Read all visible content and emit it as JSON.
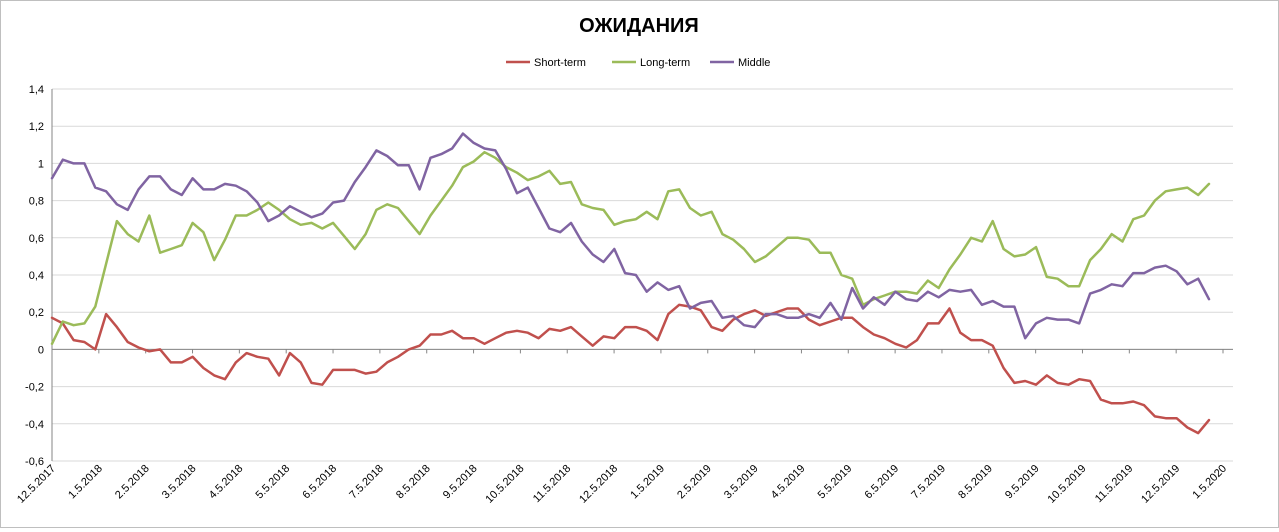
{
  "chart_data": {
    "type": "line",
    "title": "ОЖИДАНИЯ",
    "xlabel": "",
    "ylabel": "",
    "ylim": [
      -0.6,
      1.4
    ],
    "yticks": [
      "-0,6",
      "-0,4",
      "-0,2",
      "0",
      "0,2",
      "0,4",
      "0,6",
      "0,8",
      "1",
      "1,2",
      "1,4"
    ],
    "x_tick_labels": [
      "12.5.2017",
      "1.5.2018",
      "2.5.2018",
      "3.5.2018",
      "4.5.2018",
      "5.5.2018",
      "6.5.2018",
      "7.5.2018",
      "8.5.2018",
      "9.5.2018",
      "10.5.2018",
      "11.5.2018",
      "12.5.2018",
      "1.5.2019",
      "2.5.2019",
      "3.5.2019",
      "4.5.2019",
      "5.5.2019",
      "6.5.2019",
      "7.5.2019",
      "8.5.2019",
      "9.5.2019",
      "10.5.2019",
      "11.5.2019",
      "12.5.2019",
      "1.5.2020"
    ],
    "grid": "horizontal",
    "legend": "top",
    "series": [
      {
        "name": "Short-term",
        "color": "#c0504d",
        "values": [
          0.17,
          0.14,
          0.05,
          0.04,
          0.0,
          0.19,
          0.12,
          0.04,
          0.01,
          -0.01,
          0.0,
          -0.07,
          -0.07,
          -0.04,
          -0.1,
          -0.14,
          -0.16,
          -0.07,
          -0.02,
          -0.04,
          -0.05,
          -0.14,
          -0.02,
          -0.07,
          -0.18,
          -0.19,
          -0.11,
          -0.11,
          -0.11,
          -0.13,
          -0.12,
          -0.07,
          -0.04,
          0.0,
          0.02,
          0.08,
          0.08,
          0.1,
          0.06,
          0.06,
          0.03,
          0.06,
          0.09,
          0.1,
          0.09,
          0.06,
          0.11,
          0.1,
          0.12,
          0.07,
          0.02,
          0.07,
          0.06,
          0.12,
          0.12,
          0.1,
          0.05,
          0.19,
          0.24,
          0.23,
          0.21,
          0.12,
          0.1,
          0.16,
          0.19,
          0.21,
          0.18,
          0.2,
          0.22,
          0.22,
          0.16,
          0.13,
          0.15,
          0.17,
          0.17,
          0.12,
          0.08,
          0.06,
          0.03,
          0.01,
          0.05,
          0.14,
          0.14,
          0.22,
          0.09,
          0.05,
          0.05,
          0.02,
          -0.1,
          -0.18,
          -0.17,
          -0.19,
          -0.14,
          -0.18,
          -0.19,
          -0.16,
          -0.17,
          -0.27,
          -0.29,
          -0.29,
          -0.28,
          -0.3,
          -0.36,
          -0.37,
          -0.37,
          -0.42,
          -0.45,
          -0.38
        ]
      },
      {
        "name": "Long-term",
        "color": "#9bbb59",
        "values": [
          0.03,
          0.15,
          0.13,
          0.14,
          0.23,
          0.46,
          0.69,
          0.62,
          0.58,
          0.72,
          0.52,
          0.54,
          0.56,
          0.68,
          0.63,
          0.48,
          0.59,
          0.72,
          0.72,
          0.75,
          0.79,
          0.75,
          0.7,
          0.67,
          0.68,
          0.65,
          0.68,
          0.61,
          0.54,
          0.62,
          0.75,
          0.78,
          0.76,
          0.69,
          0.62,
          0.72,
          0.8,
          0.88,
          0.98,
          1.01,
          1.06,
          1.03,
          0.98,
          0.95,
          0.91,
          0.93,
          0.96,
          0.89,
          0.9,
          0.78,
          0.76,
          0.75,
          0.67,
          0.69,
          0.7,
          0.74,
          0.7,
          0.85,
          0.86,
          0.76,
          0.72,
          0.74,
          0.62,
          0.59,
          0.54,
          0.47,
          0.5,
          0.55,
          0.6,
          0.6,
          0.59,
          0.52,
          0.52,
          0.4,
          0.38,
          0.24,
          0.27,
          0.29,
          0.31,
          0.31,
          0.3,
          0.37,
          0.33,
          0.43,
          0.51,
          0.6,
          0.58,
          0.69,
          0.54,
          0.5,
          0.51,
          0.55,
          0.39,
          0.38,
          0.34,
          0.34,
          0.48,
          0.54,
          0.62,
          0.58,
          0.7,
          0.72,
          0.8,
          0.85,
          0.86,
          0.87,
          0.83,
          0.89
        ]
      },
      {
        "name": "Middle",
        "color": "#8064a2",
        "values": [
          0.92,
          1.02,
          1.0,
          1.0,
          0.87,
          0.85,
          0.78,
          0.75,
          0.86,
          0.93,
          0.93,
          0.86,
          0.83,
          0.92,
          0.86,
          0.86,
          0.89,
          0.88,
          0.85,
          0.79,
          0.69,
          0.72,
          0.77,
          0.74,
          0.71,
          0.73,
          0.79,
          0.8,
          0.9,
          0.98,
          1.07,
          1.04,
          0.99,
          0.99,
          0.86,
          1.03,
          1.05,
          1.08,
          1.16,
          1.11,
          1.08,
          1.07,
          0.97,
          0.84,
          0.87,
          0.76,
          0.65,
          0.63,
          0.68,
          0.58,
          0.51,
          0.47,
          0.54,
          0.41,
          0.4,
          0.31,
          0.36,
          0.32,
          0.34,
          0.22,
          0.25,
          0.26,
          0.17,
          0.18,
          0.13,
          0.12,
          0.19,
          0.19,
          0.17,
          0.17,
          0.19,
          0.17,
          0.25,
          0.16,
          0.33,
          0.22,
          0.28,
          0.24,
          0.31,
          0.27,
          0.26,
          0.31,
          0.28,
          0.32,
          0.31,
          0.32,
          0.24,
          0.26,
          0.23,
          0.23,
          0.06,
          0.14,
          0.17,
          0.16,
          0.16,
          0.14,
          0.3,
          0.32,
          0.35,
          0.34,
          0.41,
          0.41,
          0.44,
          0.45,
          0.42,
          0.35,
          0.38,
          0.27
        ]
      }
    ]
  }
}
